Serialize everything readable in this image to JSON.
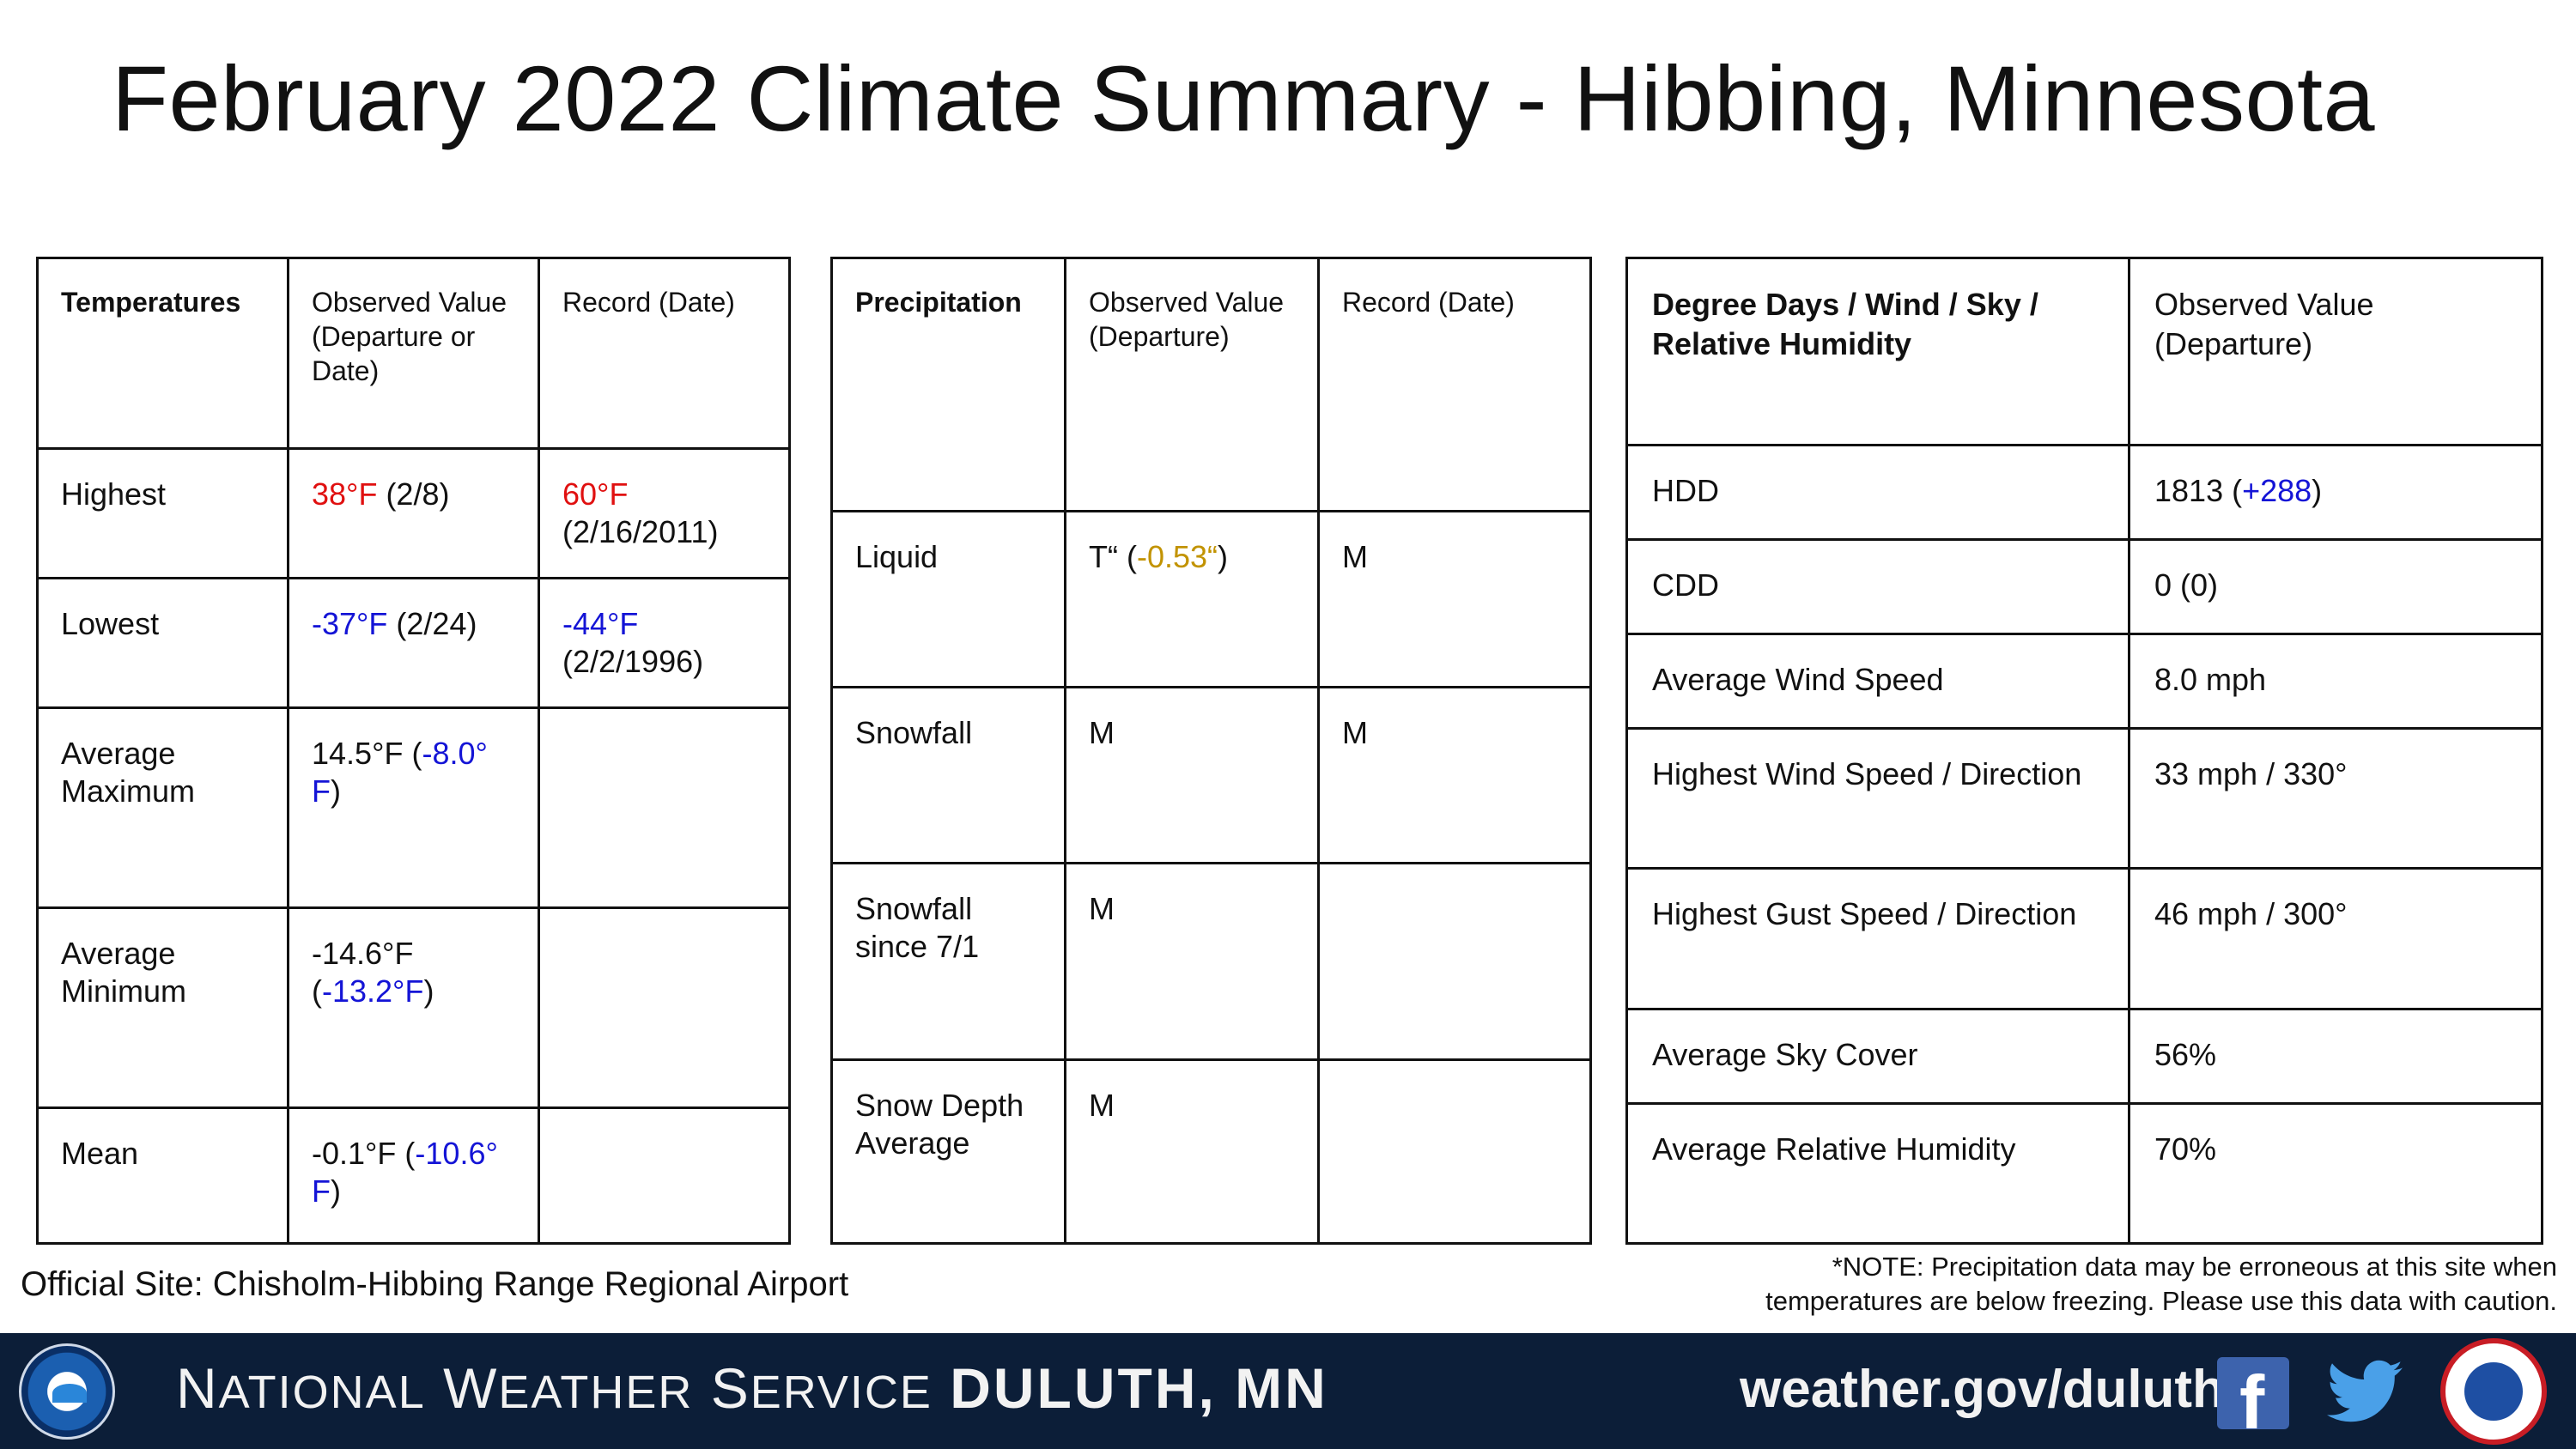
{
  "title": "February 2022 Climate Summary - Hibbing, Minnesota",
  "colors": {
    "red": "#e01010",
    "blue": "#1414d6",
    "gold": "#c29300",
    "footer_bg": "#0c1e38"
  },
  "temperatures": {
    "headers": [
      "Temperatures",
      "Observed Value (Departure or Date)",
      "Record (Date)"
    ],
    "rows": [
      {
        "label": "Highest",
        "obs_value": "38°F",
        "obs_rest": " (2/8)",
        "rec_value": "60°F",
        "rec_rest": "(2/16/2011)"
      },
      {
        "label": "Lowest",
        "obs_value": "-37°F",
        "obs_rest": " (2/24)",
        "rec_value": "-44°F",
        "rec_rest": "(2/2/1996)"
      },
      {
        "label": "Average Maximum",
        "obs_pre": "14.5°F (",
        "obs_dep": "-8.0° F",
        "obs_post": ")"
      },
      {
        "label": "Average Minimum",
        "obs_pre": "-14.6°F (",
        "obs_dep": "-13.2°F",
        "obs_post": ")"
      },
      {
        "label": "Mean",
        "obs_pre": "-0.1°F (",
        "obs_dep": "-10.6° F",
        "obs_post": ")"
      }
    ]
  },
  "precipitation": {
    "headers": [
      "Precipitation",
      "Observed Value (Departure)",
      "Record (Date)"
    ],
    "rows": [
      {
        "label": "Liquid",
        "obs_pre": "T“ (",
        "obs_dep": "-0.53“",
        "obs_post": ")",
        "record": "M"
      },
      {
        "label": "Snowfall",
        "obs": "M",
        "record": "M"
      },
      {
        "label": "Snowfall since 7/1",
        "obs": "M",
        "record": ""
      },
      {
        "label": "Snow Depth Average",
        "obs": "M",
        "record": ""
      }
    ]
  },
  "other": {
    "headers": [
      "Degree Days / Wind / Sky / Relative Humidity",
      "Observed Value (Departure)"
    ],
    "rows": [
      {
        "label": "HDD",
        "obs_pre": "1813 (",
        "obs_dep": "+288",
        "obs_post": ")"
      },
      {
        "label": "CDD",
        "obs": "0 (0)"
      },
      {
        "label": "Average Wind Speed",
        "obs": "8.0 mph"
      },
      {
        "label": "Highest Wind Speed / Direction",
        "obs": "33 mph / 330°"
      },
      {
        "label": "Highest Gust Speed / Direction",
        "obs": "46 mph / 300°"
      },
      {
        "label": "Average Sky Cover",
        "obs": "56%"
      },
      {
        "label": "Average Relative Humidity",
        "obs": "70%"
      }
    ]
  },
  "official_site": "Official Site: Chisholm-Hibbing Range Regional Airport",
  "note_line1": "*NOTE: Precipitation data may be erroneous at this site when",
  "note_line2": "temperatures are below freezing. Please use this data with caution.",
  "footer": {
    "nws_n": "N",
    "nws_ational": "ATIONAL",
    "nws_w": "W",
    "nws_eather": "EATHER",
    "nws_s": "S",
    "nws_ervice": "ERVICE",
    "office": "DULUTH, MN",
    "url": "weather.gov/duluth",
    "icons": [
      "noaa-logo",
      "facebook-icon",
      "twitter-icon",
      "nws-logo"
    ]
  }
}
